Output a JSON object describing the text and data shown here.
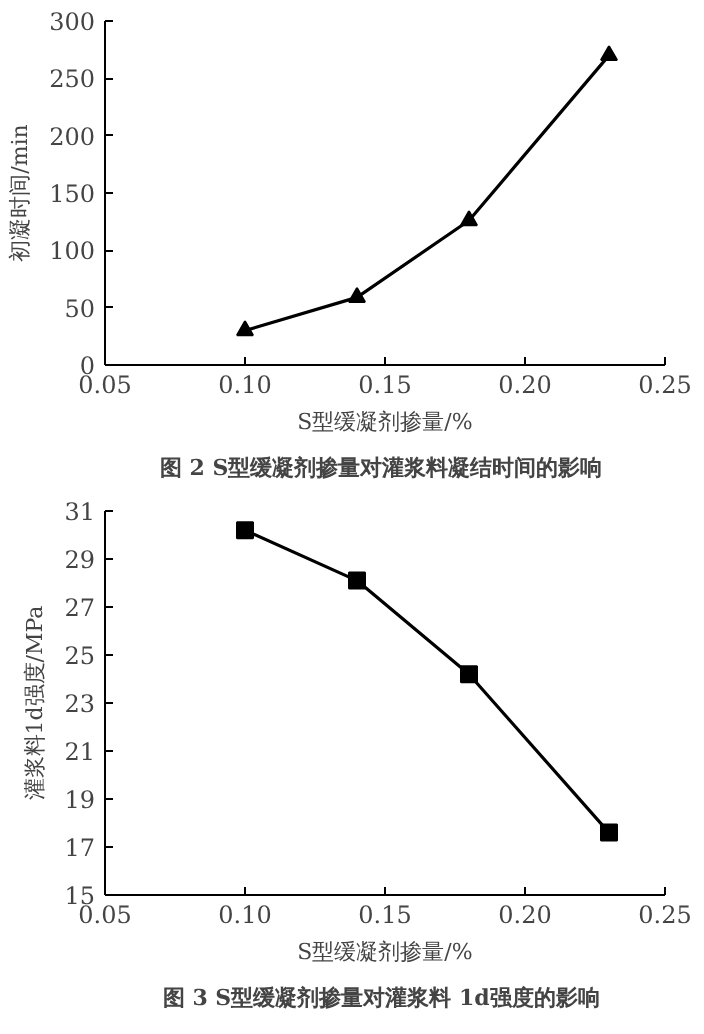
{
  "chart_data": [
    {
      "type": "line",
      "title": "图 2  S型缓凝剂掺量对灌浆料凝结时间的影响",
      "xlabel": "S型缓凝剂掺量/%",
      "ylabel": "初凝时间/min",
      "x": [
        0.1,
        0.14,
        0.18,
        0.23
      ],
      "series": [
        {
          "color": "#000000",
          "values": [
            30,
            59,
            126,
            270
          ]
        }
      ],
      "marker": "triangle",
      "grid": false,
      "xlim": [
        0.05,
        0.25
      ],
      "xticks": [
        {
          "value": 0.05,
          "label": "0.05"
        },
        {
          "value": 0.1,
          "label": "0.10"
        },
        {
          "value": 0.15,
          "label": "0.15"
        },
        {
          "value": 0.2,
          "label": "0.20"
        },
        {
          "value": 0.25,
          "label": "0.25"
        }
      ],
      "ylim": [
        0,
        300
      ],
      "yticks": [
        0,
        50,
        100,
        150,
        200,
        250,
        300
      ]
    },
    {
      "type": "line",
      "title": "图 3  S型缓凝剂掺量对灌浆料 1d强度的影响",
      "xlabel": "S型缓凝剂掺量/%",
      "ylabel": "灌浆料1d强度/MPa",
      "x": [
        0.1,
        0.14,
        0.18,
        0.23
      ],
      "series": [
        {
          "color": "#000000",
          "values": [
            30.2,
            28.1,
            24.2,
            17.6
          ]
        }
      ],
      "marker": "square",
      "grid": false,
      "xlim": [
        0.05,
        0.25
      ],
      "xticks": [
        {
          "value": 0.05,
          "label": "0.05"
        },
        {
          "value": 0.1,
          "label": "0.10"
        },
        {
          "value": 0.15,
          "label": "0.15"
        },
        {
          "value": 0.2,
          "label": "0.20"
        },
        {
          "value": 0.25,
          "label": "0.25"
        }
      ],
      "ylim": [
        15,
        31
      ],
      "yticks": [
        15,
        17,
        19,
        21,
        23,
        25,
        27,
        29,
        31
      ]
    }
  ]
}
